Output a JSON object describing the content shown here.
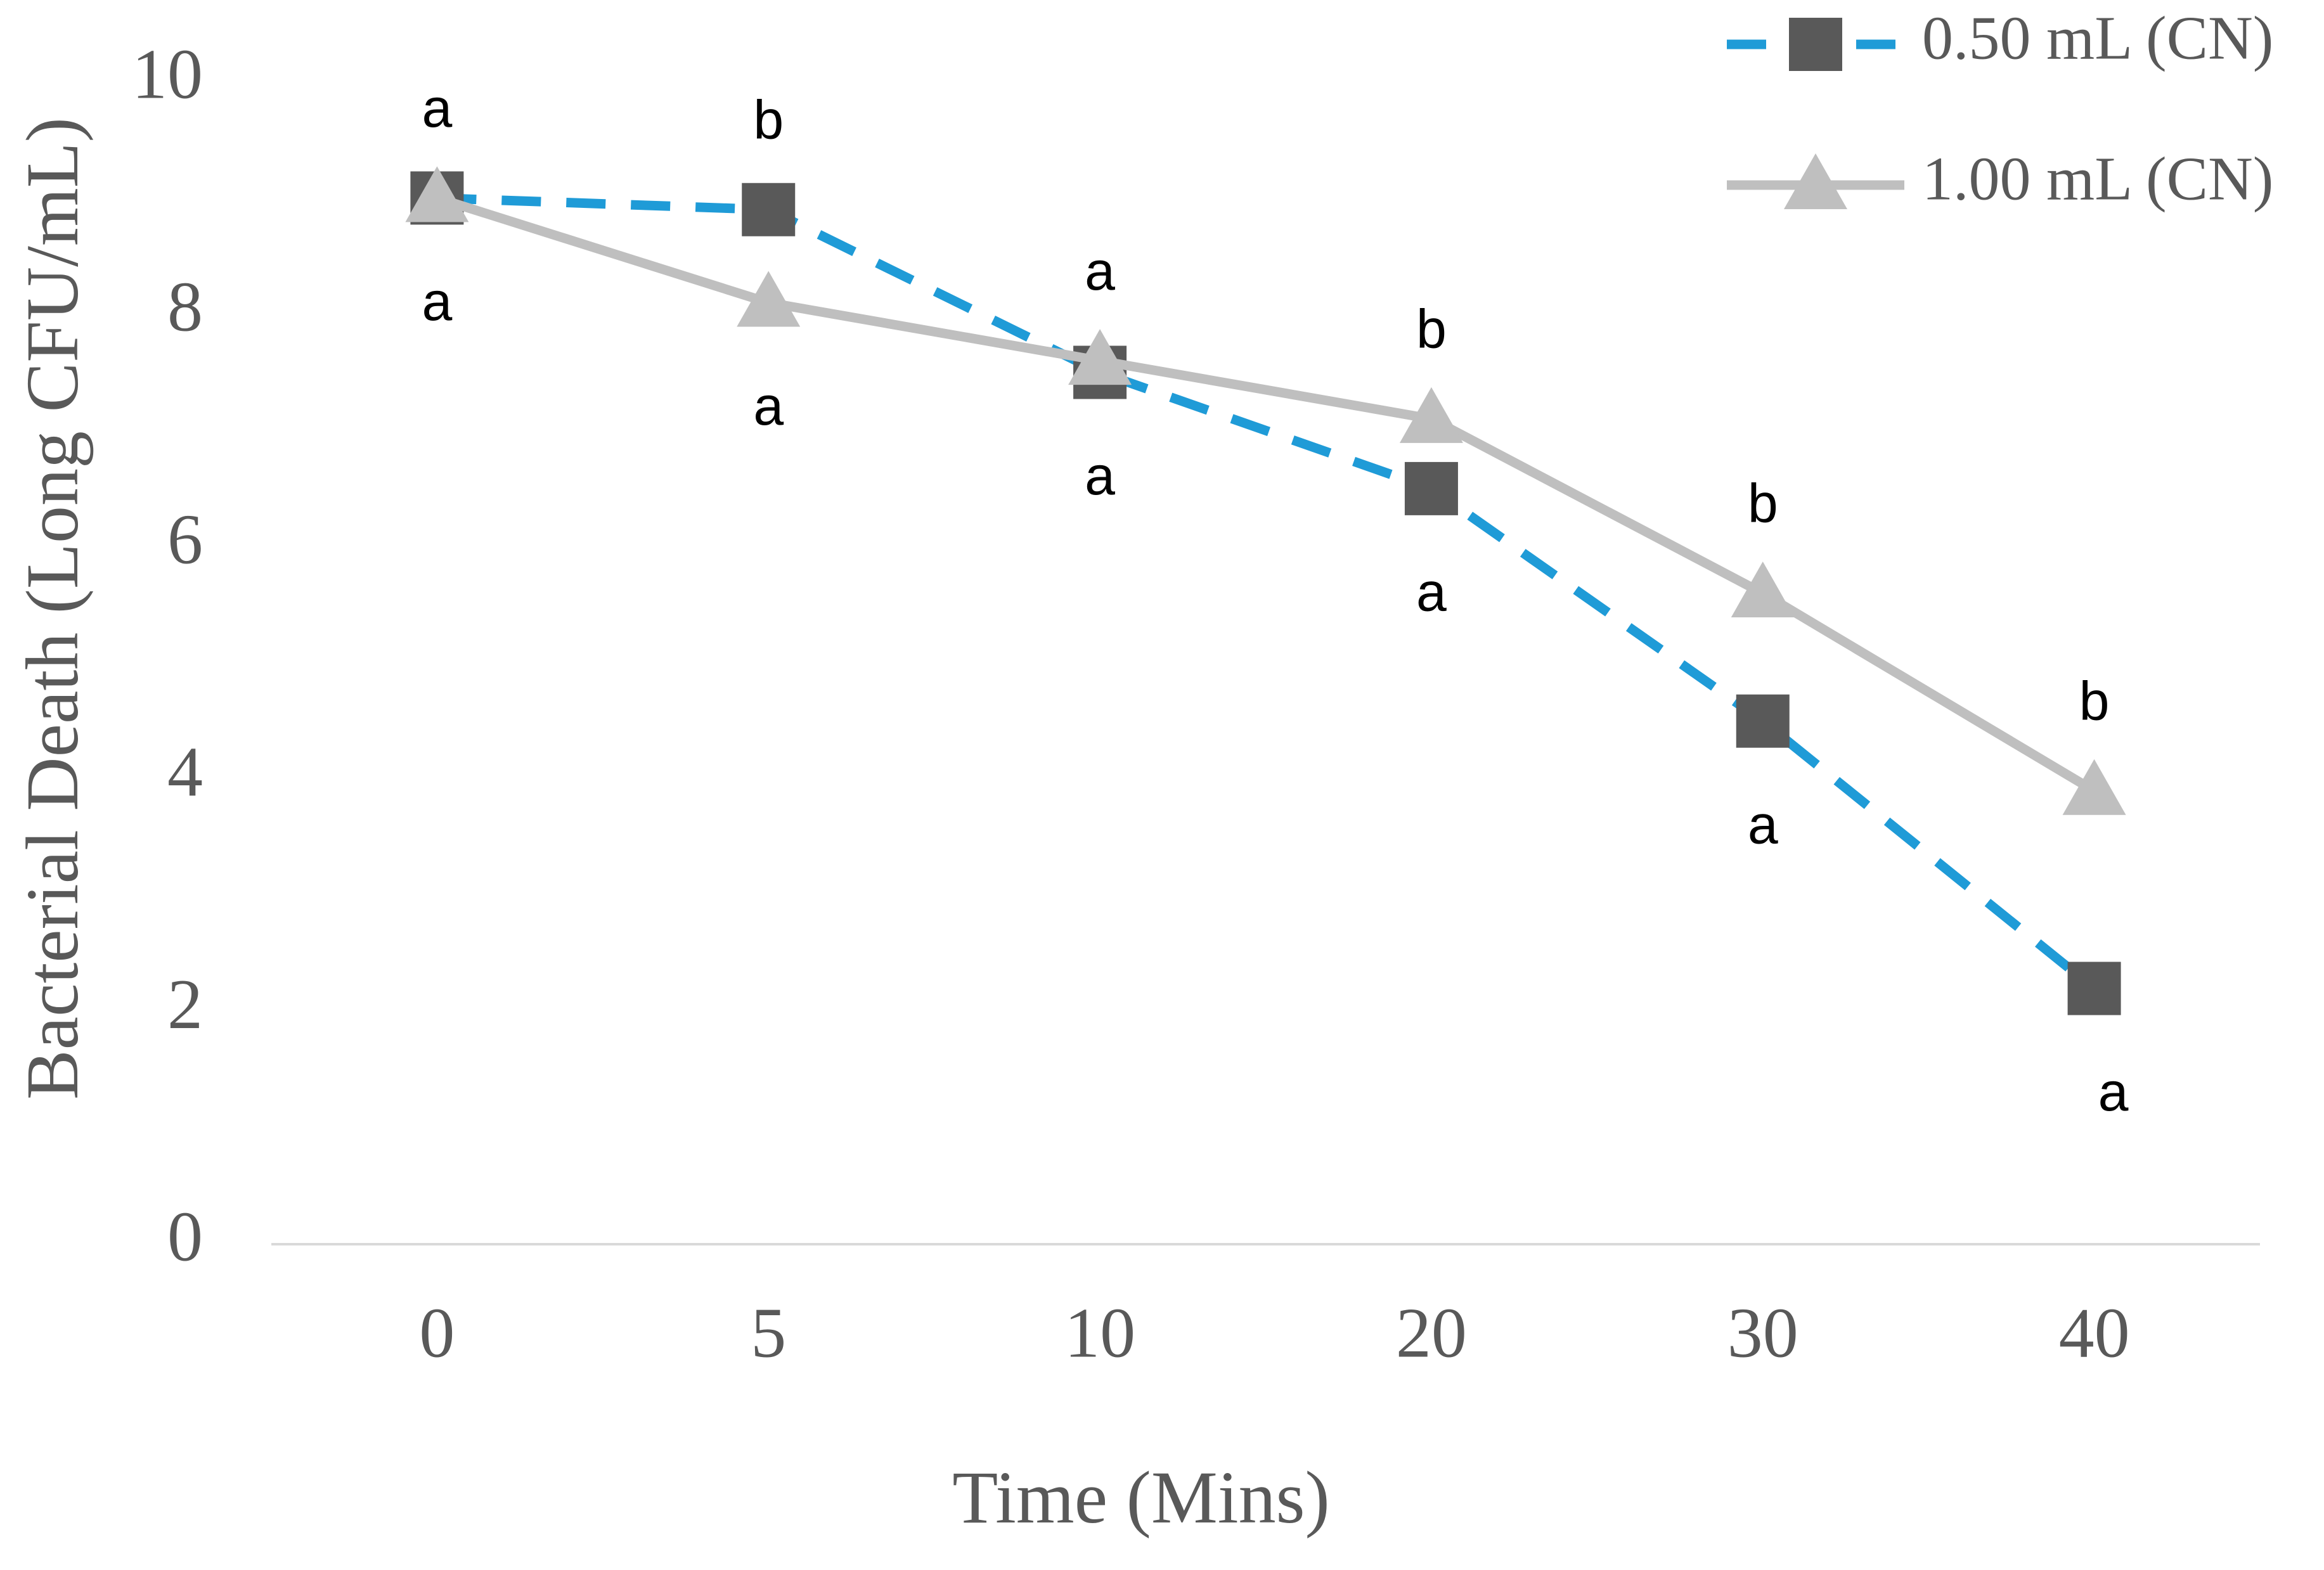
{
  "chart_data": {
    "type": "line",
    "x_label": "Time (Mins)",
    "y_label": "Bacterial Death (Long CFU/mL)",
    "categories": [
      "0",
      "5",
      "10",
      "20",
      "30",
      "40"
    ],
    "series": [
      {
        "name": "0.50 mL (CN)",
        "color": "#1f9bd7",
        "line_style": "dashed",
        "marker": "square",
        "marker_color": "#595959",
        "values": [
          9.0,
          8.9,
          7.5,
          6.5,
          4.5,
          2.2
        ],
        "letters": [
          "a",
          "b",
          "a",
          "a",
          "a",
          "a"
        ]
      },
      {
        "name": "1.00 mL (CN)",
        "color": "#bfbfbf",
        "line_style": "solid",
        "marker": "triangle",
        "marker_color": "#bfbfbf",
        "values": [
          9.0,
          8.1,
          7.6,
          7.1,
          5.6,
          3.9
        ],
        "letters": [
          "a",
          "a",
          "a",
          "b",
          "b",
          "b"
        ]
      }
    ],
    "ylim": [
      0,
      10
    ],
    "yticks": [
      0,
      2,
      4,
      6,
      8,
      10
    ],
    "grid": false,
    "legend": "top-right"
  }
}
